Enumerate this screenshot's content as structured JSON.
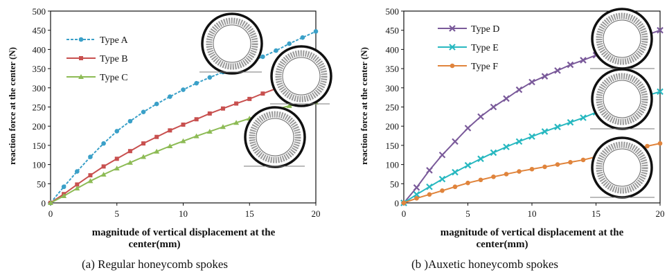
{
  "captions": {
    "left": "(a) Regular honeycomb spokes",
    "right": "(b )Auxetic honeycomb spokes"
  },
  "chart_data": [
    {
      "type": "line",
      "title": "",
      "xlabel": "magnitude of vertical displacement at the center(mm)",
      "ylabel": "reaction force at the center (N)",
      "xlim": [
        0,
        20
      ],
      "ylim": [
        0,
        500
      ],
      "xticks": [
        0,
        5,
        10,
        15,
        20
      ],
      "yticks": [
        0,
        50,
        100,
        150,
        200,
        250,
        300,
        350,
        400,
        450,
        500
      ],
      "grid": false,
      "legend_position": "top-left",
      "x": [
        0,
        1,
        2,
        3,
        4,
        5,
        6,
        7,
        8,
        9,
        10,
        11,
        12,
        13,
        14,
        15,
        16,
        17,
        18,
        19,
        20
      ],
      "series": [
        {
          "name": "Type A",
          "color": "#3aa0c8",
          "marker": "circle",
          "dash": "dashed",
          "values": [
            0,
            42,
            82,
            120,
            155,
            187,
            213,
            237,
            258,
            277,
            295,
            312,
            327,
            341,
            355,
            368,
            381,
            397,
            415,
            431,
            447
          ]
        },
        {
          "name": "Type B",
          "color": "#c8504f",
          "marker": "square",
          "dash": "solid",
          "values": [
            0,
            23,
            48,
            72,
            95,
            115,
            135,
            155,
            172,
            189,
            204,
            218,
            233,
            246,
            259,
            271,
            285,
            298,
            312,
            326,
            340
          ]
        },
        {
          "name": "Type C",
          "color": "#8dbb55",
          "marker": "triangle",
          "dash": "solid",
          "values": [
            0,
            18,
            38,
            57,
            74,
            90,
            105,
            120,
            134,
            148,
            161,
            174,
            186,
            198,
            209,
            220,
            232,
            244,
            253,
            258,
            262
          ]
        }
      ]
    },
    {
      "type": "line",
      "title": "",
      "xlabel": "magnitude of vertical displacement at the center(mm)",
      "ylabel": "reaction force at the center (N)",
      "xlim": [
        0,
        20
      ],
      "ylim": [
        0,
        500
      ],
      "xticks": [
        0,
        5,
        10,
        15,
        20
      ],
      "yticks": [
        0,
        50,
        100,
        150,
        200,
        250,
        300,
        350,
        400,
        450,
        500
      ],
      "grid": false,
      "legend_position": "top-left",
      "x": [
        0,
        1,
        2,
        3,
        4,
        5,
        6,
        7,
        8,
        9,
        10,
        11,
        12,
        13,
        14,
        15,
        16,
        17,
        18,
        19,
        20
      ],
      "series": [
        {
          "name": "Type D",
          "color": "#7a5a9a",
          "marker": "x",
          "dash": "solid",
          "values": [
            0,
            40,
            85,
            125,
            160,
            195,
            225,
            250,
            272,
            295,
            315,
            330,
            345,
            360,
            372,
            385,
            398,
            410,
            422,
            438,
            450
          ]
        },
        {
          "name": "Type E",
          "color": "#28b8c0",
          "marker": "x",
          "dash": "solid",
          "values": [
            0,
            22,
            42,
            62,
            80,
            98,
            115,
            131,
            146,
            160,
            173,
            186,
            198,
            210,
            222,
            236,
            250,
            261,
            270,
            280,
            290
          ]
        },
        {
          "name": "Type F",
          "color": "#e0843c",
          "marker": "circle",
          "dash": "solid",
          "values": [
            0,
            12,
            22,
            32,
            42,
            52,
            60,
            68,
            75,
            82,
            88,
            94,
            100,
            106,
            112,
            120,
            128,
            136,
            142,
            148,
            155
          ]
        }
      ]
    }
  ]
}
